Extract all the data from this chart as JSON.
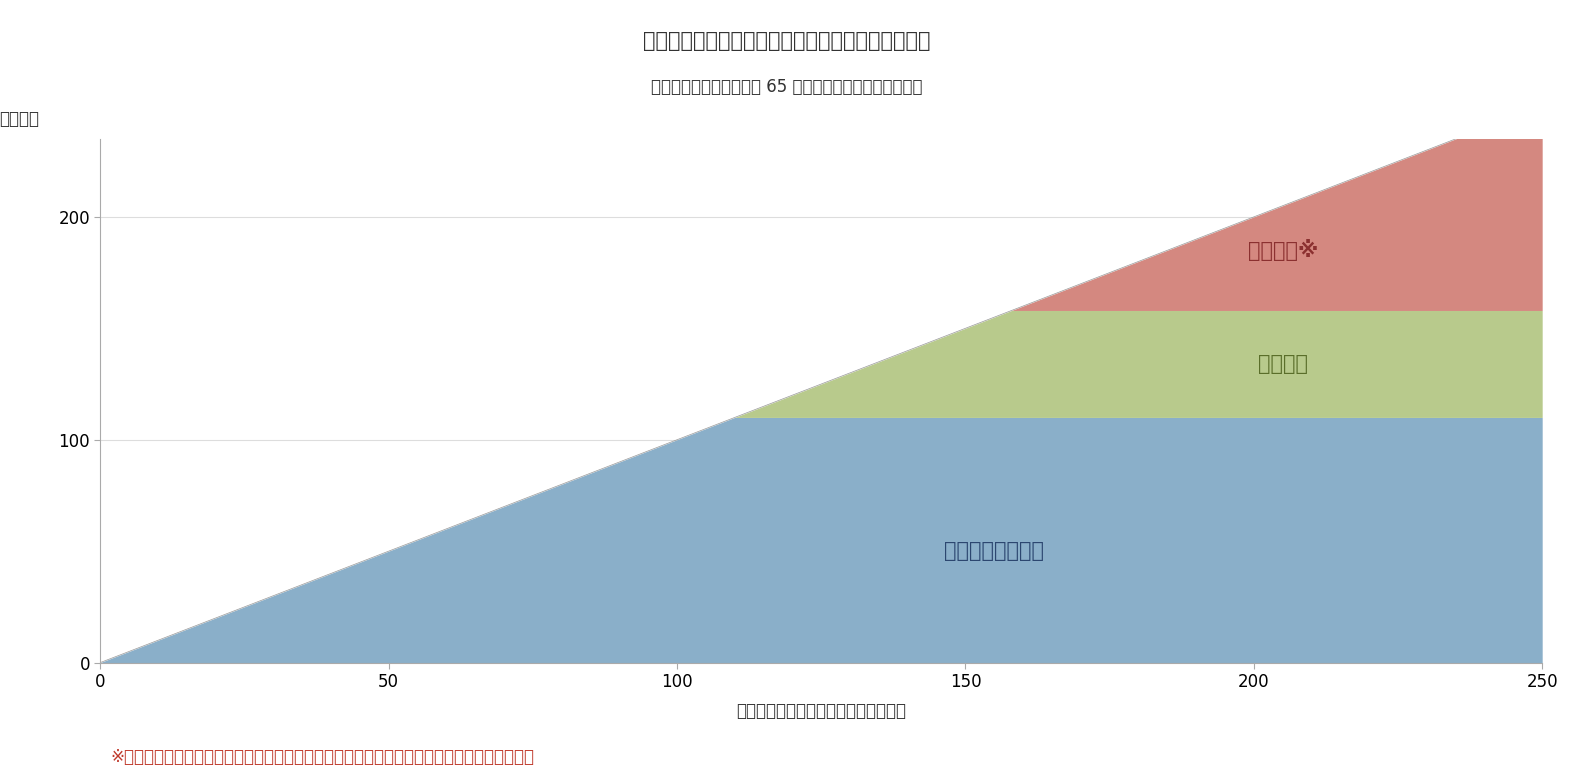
{
  "title_line1": "図表１：公的年金からの年間収入金額と各種控除額",
  "title_line2": "（収入が公的年金のみの 65 歳以上の単身高齢者の場合）",
  "xlabel": "公的年金からの年間収入金額（万円）",
  "ylabel": "（万円）",
  "footnote": "※実際は基礎控除のほかに社会保険料控除など様々な控除があるため、課税所得は更に少ない",
  "label_blue": "公的年金等控除額",
  "label_green": "基礎控除",
  "label_red": "課税所得※",
  "color_blue": "#8aafc9",
  "color_green": "#b8ca8c",
  "color_red": "#d48880",
  "color_footnote": "#c0392b",
  "color_label_blue": "#2c4770",
  "color_label_green": "#5a6e2a",
  "color_label_red": "#8b3030",
  "color_title": "#333333",
  "xlim": [
    0,
    250
  ],
  "ylim": [
    0,
    235
  ],
  "xticks": [
    0,
    50,
    100,
    150,
    200,
    250
  ],
  "yticks": [
    0,
    100,
    200
  ],
  "pension_deduction_max": 110,
  "basic_deduction": 48,
  "taxfree_threshold": 158,
  "x_max": 250,
  "figsize": [
    15.73,
    7.82
  ],
  "dpi": 100,
  "title_fontsize": 15,
  "subtitle_fontsize": 12,
  "label_fontsize": 15,
  "footnote_fontsize": 12,
  "axis_tick_fontsize": 12,
  "axis_label_fontsize": 12
}
